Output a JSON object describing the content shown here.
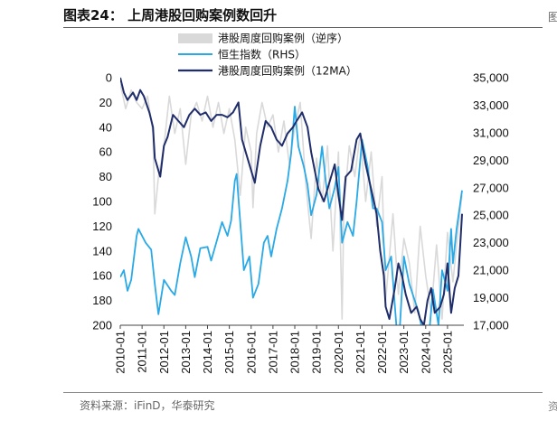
{
  "header": {
    "title": "图表24：  上周港股回购案例数回升"
  },
  "footer": {
    "source": "资料来源：iFinD，华泰研究"
  },
  "chart_data": {
    "type": "line",
    "left_axis": {
      "ticks": [
        "0",
        "20",
        "40",
        "60",
        "80",
        "100",
        "120",
        "140",
        "160",
        "180",
        "200"
      ],
      "range": [
        0,
        200
      ],
      "inverted": true
    },
    "right_axis": {
      "ticks": [
        "35,000",
        "33,000",
        "31,000",
        "29,000",
        "27,000",
        "25,000",
        "23,000",
        "21,000",
        "19,000",
        "17,000"
      ],
      "range": [
        17000,
        35000
      ]
    },
    "x_ticks": [
      "2010-01",
      "2011-01",
      "2012-01",
      "2013-01",
      "2014-01",
      "2015-01",
      "2016-01",
      "2017-01",
      "2018-01",
      "2019-01",
      "2020-01",
      "2021-01",
      "2022-01",
      "2023-01",
      "2024-01",
      "2025-01"
    ],
    "x_range": [
      "2010-01",
      "2025-10"
    ],
    "legend": [
      "港股周度回购案例（逆序）",
      "恒生指数（RHS）",
      "港股周度回购案例（12MA）"
    ],
    "series": [
      {
        "name": "港股周度回购案例（逆序）",
        "axis": "left",
        "color": "#d9d9d9",
        "x": [
          "2010-01",
          "2010-04",
          "2010-07",
          "2010-10",
          "2011-01",
          "2011-04",
          "2011-07",
          "2011-08",
          "2011-10",
          "2012-01",
          "2012-04",
          "2012-07",
          "2012-10",
          "2013-01",
          "2013-04",
          "2013-07",
          "2013-10",
          "2014-01",
          "2014-04",
          "2014-07",
          "2014-10",
          "2015-01",
          "2015-04",
          "2015-07",
          "2015-10",
          "2016-01",
          "2016-02",
          "2016-04",
          "2016-07",
          "2016-10",
          "2017-01",
          "2017-04",
          "2017-07",
          "2017-10",
          "2018-01",
          "2018-04",
          "2018-07",
          "2018-10",
          "2019-01",
          "2019-04",
          "2019-07",
          "2019-10",
          "2020-01",
          "2020-03",
          "2020-04",
          "2020-07",
          "2020-10",
          "2021-01",
          "2021-04",
          "2021-07",
          "2021-10",
          "2022-01",
          "2022-03",
          "2022-07",
          "2022-10",
          "2023-01",
          "2023-04",
          "2023-07",
          "2023-10",
          "2024-01",
          "2024-04",
          "2024-07",
          "2024-10",
          "2025-01",
          "2025-04",
          "2025-07",
          "2025-09"
        ],
        "values": [
          5,
          25,
          10,
          20,
          25,
          15,
          45,
          110,
          80,
          55,
          15,
          45,
          25,
          70,
          30,
          20,
          35,
          15,
          40,
          20,
          45,
          25,
          50,
          95,
          40,
          60,
          105,
          45,
          20,
          40,
          30,
          60,
          35,
          70,
          40,
          20,
          85,
          130,
          65,
          100,
          55,
          140,
          60,
          195,
          105,
          55,
          80,
          45,
          100,
          60,
          120,
          80,
          180,
          110,
          175,
          130,
          150,
          190,
          120,
          160,
          190,
          135,
          195,
          125,
          165,
          120,
          95
        ]
      },
      {
        "name": "恒生指数（RHS）",
        "axis": "right",
        "color": "#29a9e6",
        "x": [
          "2010-01",
          "2010-03",
          "2010-05",
          "2010-07",
          "2010-10",
          "2010-11",
          "2011-03",
          "2011-06",
          "2011-08",
          "2011-10",
          "2012-01",
          "2012-05",
          "2012-07",
          "2012-10",
          "2013-01",
          "2013-04",
          "2013-06",
          "2013-09",
          "2014-01",
          "2014-03",
          "2014-06",
          "2014-09",
          "2014-12",
          "2015-02",
          "2015-04",
          "2015-05",
          "2015-07",
          "2015-09",
          "2015-12",
          "2016-02",
          "2016-05",
          "2016-08",
          "2016-10",
          "2016-12",
          "2017-03",
          "2017-06",
          "2017-09",
          "2017-11",
          "2018-01",
          "2018-03",
          "2018-06",
          "2018-08",
          "2018-10",
          "2019-01",
          "2019-04",
          "2019-06",
          "2019-08",
          "2019-11",
          "2020-01",
          "2020-03",
          "2020-06",
          "2020-09",
          "2020-11",
          "2021-02",
          "2021-05",
          "2021-08",
          "2021-10",
          "2022-01",
          "2022-03",
          "2022-06",
          "2022-10",
          "2023-01",
          "2023-04",
          "2023-06",
          "2023-09",
          "2024-01",
          "2024-03",
          "2024-05",
          "2024-08",
          "2024-10",
          "2025-01",
          "2025-03",
          "2025-04",
          "2025-06",
          "2025-09"
        ],
        "values": [
          20500,
          21000,
          19500,
          20300,
          23500,
          24000,
          23000,
          22500,
          20000,
          17800,
          20300,
          19500,
          19200,
          21500,
          23400,
          22000,
          20500,
          22600,
          22700,
          21700,
          23100,
          24500,
          23500,
          24600,
          27500,
          28000,
          24500,
          21000,
          22000,
          19000,
          20000,
          23000,
          23500,
          22000,
          24000,
          25500,
          27500,
          29500,
          32900,
          30000,
          28500,
          27200,
          25000,
          26500,
          30000,
          27500,
          25500,
          27000,
          28500,
          23000,
          24500,
          23500,
          26000,
          30500,
          28600,
          25500,
          25500,
          24500,
          21000,
          22000,
          15000,
          22000,
          20000,
          19200,
          18000,
          15500,
          16500,
          19600,
          17000,
          21000,
          19500,
          24000,
          21500,
          24000,
          26800
        ]
      },
      {
        "name": "港股周度回购案例（12MA）",
        "axis": "left",
        "color": "#1f2d6b",
        "x": [
          "2010-01",
          "2010-03",
          "2010-05",
          "2010-08",
          "2010-10",
          "2010-12",
          "2011-02",
          "2011-05",
          "2011-07",
          "2011-08",
          "2011-09",
          "2011-11",
          "2012-01",
          "2012-03",
          "2012-06",
          "2012-09",
          "2012-12",
          "2013-03",
          "2013-06",
          "2013-09",
          "2013-12",
          "2014-03",
          "2014-06",
          "2014-09",
          "2014-12",
          "2015-03",
          "2015-06",
          "2015-08",
          "2015-10",
          "2016-01",
          "2016-03",
          "2016-06",
          "2016-09",
          "2016-12",
          "2017-03",
          "2017-06",
          "2017-09",
          "2017-12",
          "2018-02",
          "2018-05",
          "2018-08",
          "2018-10",
          "2018-12",
          "2019-02",
          "2019-05",
          "2019-08",
          "2019-11",
          "2020-01",
          "2020-03",
          "2020-05",
          "2020-08",
          "2020-11",
          "2021-01",
          "2021-04",
          "2021-07",
          "2021-10",
          "2021-12",
          "2022-02",
          "2022-03",
          "2022-05",
          "2022-08",
          "2022-10",
          "2022-12",
          "2023-02",
          "2023-05",
          "2023-08",
          "2023-10",
          "2023-12",
          "2024-02",
          "2024-04",
          "2024-06",
          "2024-09",
          "2024-11",
          "2025-01",
          "2025-03",
          "2025-05",
          "2025-07",
          "2025-09"
        ],
        "values": [
          0,
          12,
          18,
          12,
          18,
          10,
          15,
          28,
          40,
          65,
          70,
          80,
          55,
          48,
          30,
          35,
          40,
          30,
          25,
          30,
          28,
          35,
          30,
          30,
          32,
          28,
          20,
          50,
          60,
          75,
          85,
          55,
          35,
          40,
          50,
          55,
          45,
          40,
          35,
          28,
          40,
          60,
          75,
          90,
          100,
          85,
          70,
          95,
          115,
          80,
          75,
          50,
          45,
          70,
          90,
          110,
          140,
          160,
          185,
          195,
          170,
          150,
          160,
          175,
          190,
          185,
          195,
          200,
          180,
          170,
          190,
          185,
          175,
          150,
          190,
          170,
          160,
          110
        ]
      }
    ]
  }
}
